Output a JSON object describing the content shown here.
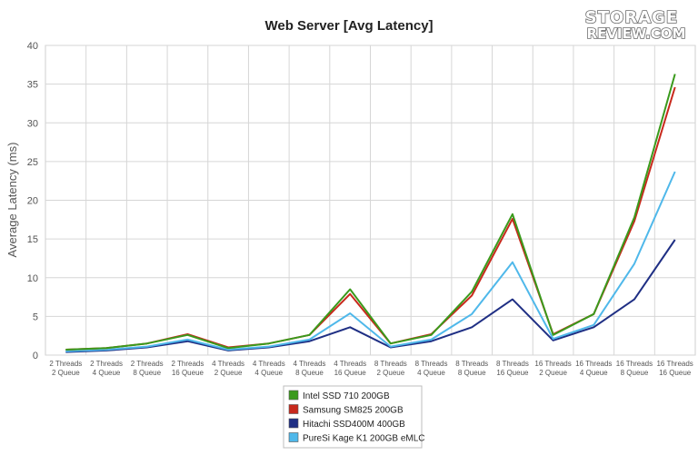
{
  "logo": {
    "line1": "STORAGE",
    "line2": "REVIEW.COM"
  },
  "chart_data": {
    "type": "line",
    "title": "Web Server [Avg Latency]",
    "ylabel": "Average Latency (ms)",
    "xlabel": "",
    "ylim": [
      0,
      40
    ],
    "yticks": [
      0,
      5,
      10,
      15,
      20,
      25,
      30,
      35,
      40
    ],
    "grid": true,
    "legend": "bottom-center",
    "categories": [
      [
        "2 Threads",
        "2 Queue"
      ],
      [
        "2 Threads",
        "4 Queue"
      ],
      [
        "2 Threads",
        "8 Queue"
      ],
      [
        "2 Threads",
        "16 Queue"
      ],
      [
        "4 Threads",
        "2 Queue"
      ],
      [
        "4 Threads",
        "4 Queue"
      ],
      [
        "4 Threads",
        "8 Queue"
      ],
      [
        "4 Threads",
        "16 Queue"
      ],
      [
        "8 Threads",
        "2 Queue"
      ],
      [
        "8 Threads",
        "4 Queue"
      ],
      [
        "8 Threads",
        "8 Queue"
      ],
      [
        "8 Threads",
        "16 Queue"
      ],
      [
        "16 Threads",
        "2 Queue"
      ],
      [
        "16 Threads",
        "4 Queue"
      ],
      [
        "16 Threads",
        "8 Queue"
      ],
      [
        "16 Threads",
        "16 Queue"
      ]
    ],
    "series": [
      {
        "name": "Intel SSD 710 200GB",
        "color": "#3a9a1c",
        "values": [
          0.7,
          0.9,
          1.5,
          2.6,
          0.9,
          1.5,
          2.6,
          8.5,
          1.5,
          2.6,
          8.2,
          18.2,
          2.6,
          5.3,
          17.8,
          36.3
        ]
      },
      {
        "name": "Samsung SM825 200GB",
        "color": "#c8291c",
        "values": [
          0.7,
          0.9,
          1.5,
          2.7,
          1.0,
          1.5,
          2.6,
          7.9,
          1.5,
          2.7,
          7.7,
          17.6,
          2.7,
          5.3,
          17.3,
          34.6
        ]
      },
      {
        "name": "Hitachi SSD400M 400GB",
        "color": "#1f2f84",
        "values": [
          0.4,
          0.6,
          1.0,
          1.8,
          0.6,
          1.0,
          1.8,
          3.6,
          1.0,
          1.8,
          3.6,
          7.2,
          1.9,
          3.6,
          7.2,
          14.9
        ]
      },
      {
        "name": "PureSi Kage K1 200GB eMLC",
        "color": "#4fb8ea",
        "values": [
          0.5,
          0.7,
          1.1,
          2.0,
          0.7,
          1.1,
          2.0,
          5.4,
          1.1,
          2.0,
          5.3,
          12.0,
          2.1,
          3.9,
          11.8,
          23.7
        ]
      }
    ]
  }
}
